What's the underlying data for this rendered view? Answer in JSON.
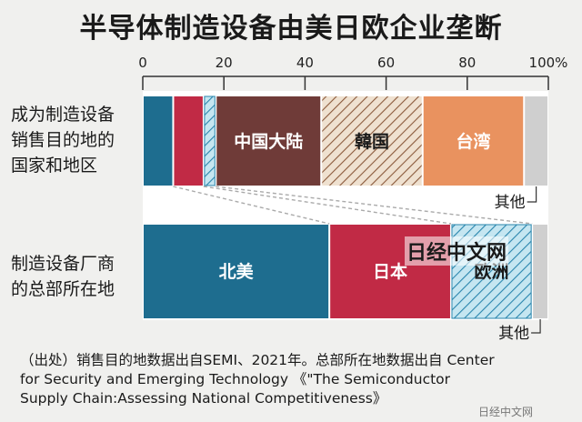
{
  "title": "半导体制造设备由美日欧企业垄断",
  "chart_data": [
    {
      "type": "bar",
      "stacked": true,
      "orientation": "horizontal",
      "title": "半导体制造设备由美日欧企业垄断",
      "xlim": [
        0,
        100
      ],
      "ticks": [
        "0",
        "20",
        "40",
        "60",
        "80",
        "100%"
      ],
      "tick_values": [
        0,
        20,
        40,
        60,
        80,
        100
      ],
      "categories": [
        "成为制造设备销售目的地的国家和地区"
      ],
      "series": [
        {
          "name": "",
          "values": [
            7.5
          ],
          "color": "#1e6d8f"
        },
        {
          "name": "",
          "values": [
            7.5
          ],
          "color": "#c12a45"
        },
        {
          "name": "",
          "values": [
            3
          ],
          "color": "#9fd3e6",
          "pattern": "hatch"
        },
        {
          "name": "中国大陆",
          "values": [
            26
          ],
          "color": "#6f3b38"
        },
        {
          "name": "韓国",
          "values": [
            25
          ],
          "color": "#d9c2a8",
          "pattern": "hatch"
        },
        {
          "name": "台湾",
          "values": [
            25
          ],
          "color": "#e9925f"
        },
        {
          "name": "其他",
          "values": [
            6
          ],
          "color": "#cfcfcf"
        }
      ]
    },
    {
      "type": "bar",
      "stacked": true,
      "orientation": "horizontal",
      "xlim": [
        0,
        100
      ],
      "categories": [
        "制造设备厂商的总部所在地"
      ],
      "series": [
        {
          "name": "北美",
          "values": [
            46
          ],
          "color": "#1e6d8f"
        },
        {
          "name": "日本",
          "values": [
            30
          ],
          "color": "#c12a45"
        },
        {
          "name": "欧洲",
          "values": [
            20
          ],
          "color": "#9fd3e6",
          "pattern": "hatch"
        },
        {
          "name": "其他",
          "values": [
            4
          ],
          "color": "#cfcfcf"
        }
      ]
    }
  ],
  "labels": {
    "row1": [
      "成为制造设备",
      "销售目的地的",
      "国家和地区"
    ],
    "row2": [
      "制造设备厂商",
      "的总部所在地"
    ],
    "other1": "其他",
    "other2": "其他"
  },
  "source": {
    "line1": "（出处）销售目的地数据出自SEMI、2021年。总部所在地数据出自 Center",
    "line2": "for Security and Emerging Technology 《\"The Semiconductor",
    "line3": "Supply Chain:Assessing National Competitiveness》"
  },
  "watermark": "日经中文网",
  "watermark_small": "日经中文网"
}
